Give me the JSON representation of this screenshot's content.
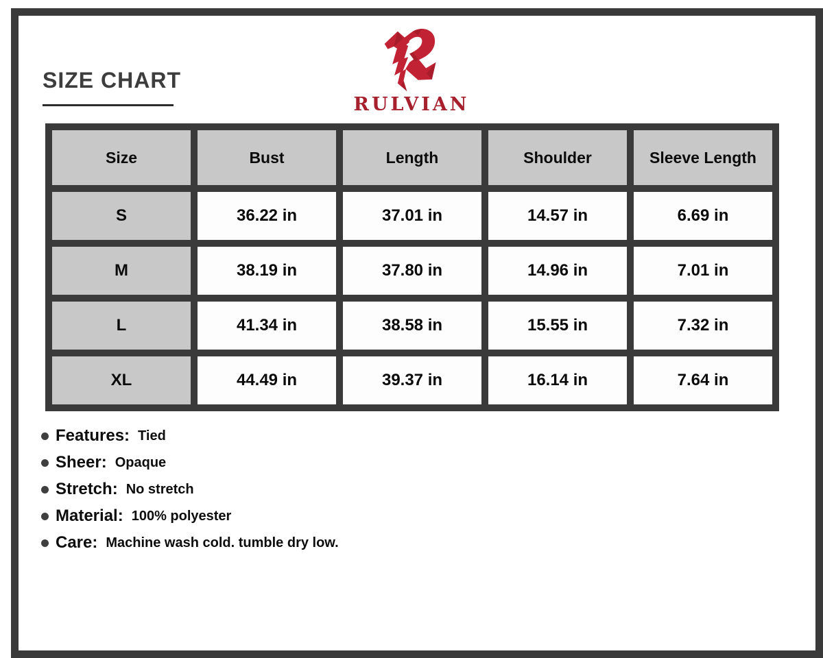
{
  "page": {
    "title": "SIZE CHART"
  },
  "brand": {
    "name": "RULVIAN",
    "logo_icon": "rulvian-angular-r-logo"
  },
  "size_table": {
    "columns": [
      "Size",
      "Bust",
      "Length",
      "Shoulder",
      "Sleeve Length"
    ],
    "rows": [
      {
        "size": "S",
        "values": [
          "36.22 in",
          "37.01 in",
          "14.57 in",
          "6.69 in"
        ]
      },
      {
        "size": "M",
        "values": [
          "38.19 in",
          "37.80 in",
          "14.96 in",
          "7.01 in"
        ]
      },
      {
        "size": "L",
        "values": [
          "41.34 in",
          "38.58 in",
          "15.55 in",
          "7.32 in"
        ]
      },
      {
        "size": "XL",
        "values": [
          "44.49 in",
          "39.37 in",
          "16.14 in",
          "7.64 in"
        ]
      }
    ],
    "unit": "in"
  },
  "details": [
    {
      "label": "Features:",
      "value": "Tied"
    },
    {
      "label": "Sheer:",
      "value": "Opaque"
    },
    {
      "label": "Stretch:",
      "value": "No stretch"
    },
    {
      "label": "Material:",
      "value": "100% polyester"
    },
    {
      "label": "Care:",
      "value": "Machine wash cold. tumble dry low."
    }
  ],
  "colors": {
    "brand_red": "#C22334",
    "brand_red_dark": "#A81D2B",
    "wordmark_red": "#A6202E",
    "frame_dark": "#3A3A3A",
    "cell_gray": "#C8C8C8",
    "cell_white": "#FDFDFD",
    "title_text": "#3D3D3D"
  }
}
